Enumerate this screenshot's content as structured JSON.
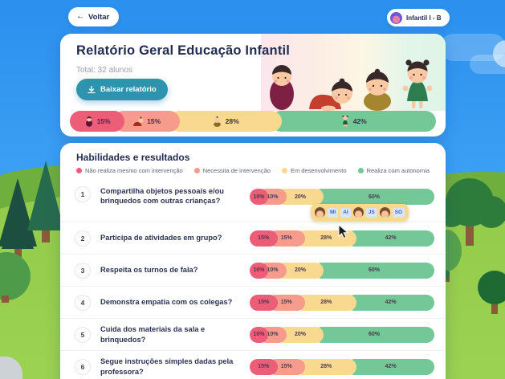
{
  "top_bar": {
    "back_label": "Voltar",
    "class_badge": {
      "label": "Infantil I - B"
    }
  },
  "header": {
    "title": "Relatório Geral Educação Infantil",
    "total": "Total: 32 alunos",
    "download_label": "Baixar relatório",
    "summary": {
      "segments": [
        {
          "label": "15%",
          "value": 15,
          "color": "#EC5D77",
          "icon": "baby-swaddled"
        },
        {
          "label": "15%",
          "value": 15,
          "color": "#F79C8D",
          "icon": "baby-crawling"
        },
        {
          "label": "28%",
          "value": 28,
          "color": "#F9D98F",
          "icon": "baby-sitting"
        },
        {
          "label": "42%",
          "value": 42,
          "color": "#74C796",
          "icon": "toddler-standing"
        }
      ]
    }
  },
  "skills": {
    "heading": "Habilidades e resultados",
    "legend": [
      {
        "label": "Não realiza mesmo com intervenção",
        "color": "#EC5D77"
      },
      {
        "label": "Necessita de intervenção",
        "color": "#F79C8D"
      },
      {
        "label": "Em desenvolvimento",
        "color": "#F9D98F"
      },
      {
        "label": "Realiza com autonomia",
        "color": "#74C796"
      }
    ],
    "rows": [
      {
        "number": "1",
        "question": "Compartilha objetos pessoais e/ou brinquedos com outras crianças?",
        "values": [
          10,
          10,
          20,
          60
        ],
        "labels": [
          "10%",
          "10%",
          "20%",
          "60%"
        ]
      },
      {
        "number": "2",
        "question": "Participa de atividades em grupo?",
        "values": [
          15,
          15,
          28,
          42
        ],
        "labels": [
          "15%",
          "15%",
          "28%",
          "42%"
        ]
      },
      {
        "number": "3",
        "question": "Respeita os turnos de fala?",
        "values": [
          10,
          10,
          20,
          60
        ],
        "labels": [
          "10%",
          "10%",
          "20%",
          "60%"
        ]
      },
      {
        "number": "4",
        "question": "Demonstra empatia com os colegas?",
        "values": [
          15,
          15,
          28,
          42
        ],
        "labels": [
          "15%",
          "15%",
          "28%",
          "42%"
        ]
      },
      {
        "number": "5",
        "question": "Cuida dos materiais da sala e brinquedos?",
        "values": [
          10,
          10,
          20,
          60
        ],
        "labels": [
          "10%",
          "10%",
          "20%",
          "60%"
        ]
      },
      {
        "number": "6",
        "question": "Segue instruções simples dadas pela professora?",
        "values": [
          15,
          15,
          28,
          42
        ],
        "labels": [
          "15%",
          "15%",
          "28%",
          "42%"
        ]
      }
    ],
    "tooltip": {
      "row_index": 0,
      "items": [
        {
          "type": "avatar"
        },
        {
          "type": "chip",
          "label": "MI"
        },
        {
          "type": "chip",
          "label": "AI"
        },
        {
          "type": "avatar"
        },
        {
          "type": "chip",
          "label": "JS"
        },
        {
          "type": "avatar"
        },
        {
          "type": "chip",
          "label": "SO"
        }
      ]
    }
  },
  "colors": {
    "accent_teal": "#2E93AE",
    "navy": "#232C51",
    "sky": "#2D97F2",
    "grass": "#94CB4A",
    "red": "#EC5D77",
    "salmon": "#F79C8D",
    "yellow": "#F9D98F",
    "green": "#74C796"
  }
}
